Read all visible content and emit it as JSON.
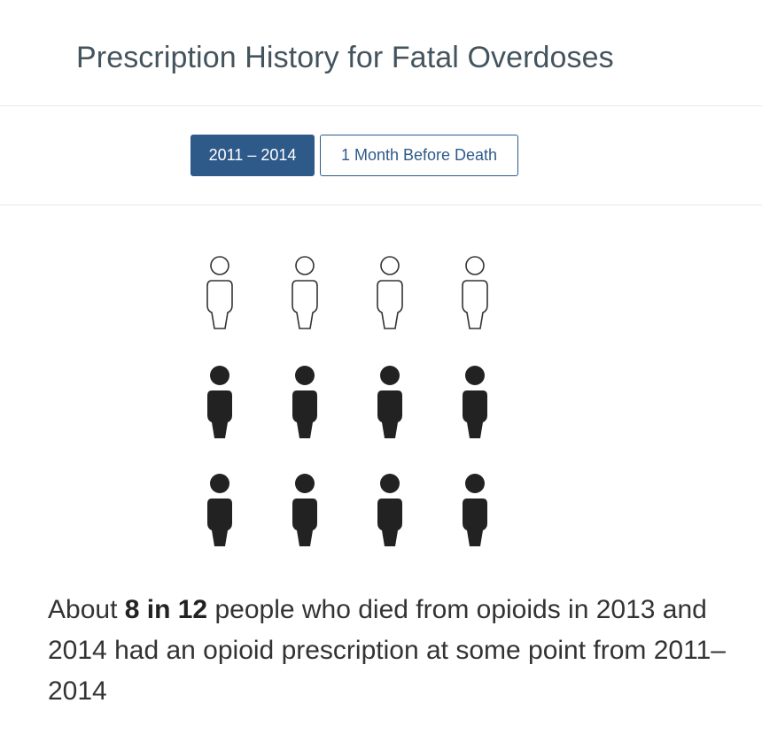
{
  "title": "Prescription History for Fatal Overdoses",
  "tabs": [
    {
      "label": "2011 – 2014",
      "active": true
    },
    {
      "label": "1 Month Before Death",
      "active": false
    }
  ],
  "colors": {
    "accent": "#2e5a8a",
    "filled_person": "#222222",
    "outline_person": "#333333"
  },
  "pictogram": {
    "total": 12,
    "filled": 8,
    "columns": 4,
    "rows": 3
  },
  "summary": {
    "prefix": "About ",
    "highlight": "8 in 12",
    "suffix": " people who died from opioids in 2013 and 2014 had an opioid prescription at some point from 2011–2014"
  }
}
